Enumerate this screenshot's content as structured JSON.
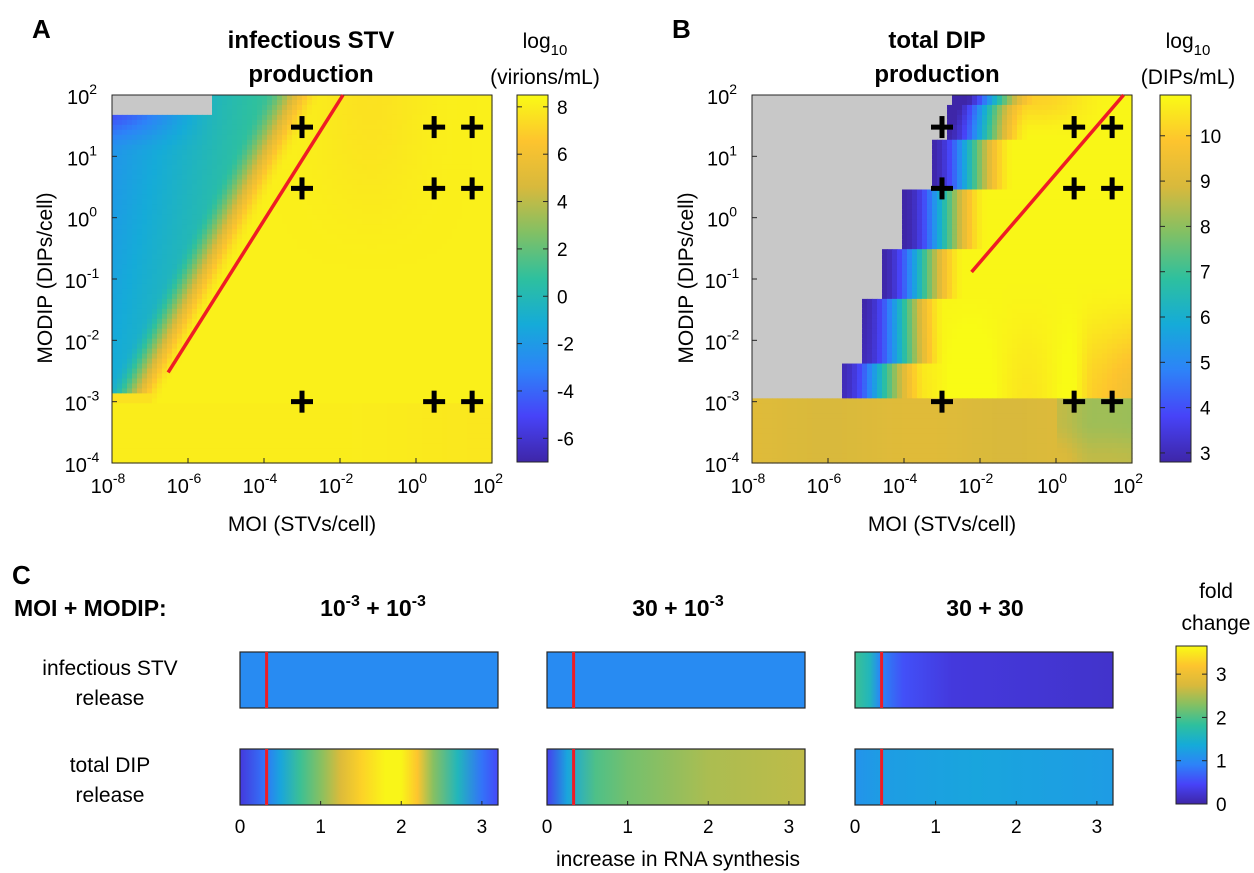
{
  "colormap": [
    "#3e26a8",
    "#4743f8",
    "#2d83f8",
    "#15abd8",
    "#2ec09e",
    "#82c064",
    "#d8b93c",
    "#fdc42e",
    "#f9fb15"
  ],
  "colors": {
    "nan": "#c8c8c8",
    "line": "#ee1c25",
    "cross": "#000000"
  },
  "chart_data": [
    {
      "type": "heatmap",
      "panel_label": "A",
      "title_lines": [
        "infectious STV",
        "production"
      ],
      "xlabel": "MOI (STVs/cell)",
      "ylabel": "MODIP (DIPs/cell)",
      "xscale": "log",
      "yscale": "log",
      "xlim": [
        1e-08,
        100
      ],
      "ylim": [
        0.0001,
        100
      ],
      "x_ticks": [
        {
          "base": "10",
          "exp": "-8"
        },
        {
          "base": "10",
          "exp": "-6"
        },
        {
          "base": "10",
          "exp": "-4"
        },
        {
          "base": "10",
          "exp": "-2"
        },
        {
          "base": "10",
          "exp": "0"
        },
        {
          "base": "10",
          "exp": "2"
        }
      ],
      "y_ticks": [
        {
          "base": "10",
          "exp": "-4"
        },
        {
          "base": "10",
          "exp": "-3"
        },
        {
          "base": "10",
          "exp": "-2"
        },
        {
          "base": "10",
          "exp": "-1"
        },
        {
          "base": "10",
          "exp": "0"
        },
        {
          "base": "10",
          "exp": "1"
        },
        {
          "base": "10",
          "exp": "2"
        }
      ],
      "colorbar": {
        "title_lines": [
          "log10",
          "(virions/mL)"
        ],
        "title_base": "log",
        "title_sub": "10",
        "title_line2": "(virions/mL)",
        "range": [
          -7,
          8.5
        ],
        "ticks": [
          "8",
          "6",
          "4",
          "2",
          "0",
          "-2",
          "-4",
          "-6"
        ]
      },
      "markers": [
        [
          0.001,
          30
        ],
        [
          3,
          30
        ],
        [
          30,
          30
        ],
        [
          0.001,
          3
        ],
        [
          3,
          3
        ],
        [
          30,
          3
        ],
        [
          0.001,
          0.001
        ],
        [
          3,
          0.001
        ],
        [
          30,
          0.001
        ]
      ],
      "red_line": [
        [
          3e-07,
          0.003
        ],
        [
          0.012,
          100
        ]
      ],
      "nan_region": "MODIP above ~50 at very low MOI"
    },
    {
      "type": "heatmap",
      "panel_label": "B",
      "title_lines": [
        "total DIP",
        "production"
      ],
      "xlabel": "MOI (STVs/cell)",
      "ylabel": "MODIP (DIPs/cell)",
      "xscale": "log",
      "yscale": "log",
      "xlim": [
        1e-08,
        100
      ],
      "ylim": [
        0.0001,
        100
      ],
      "x_ticks": [
        {
          "base": "10",
          "exp": "-8"
        },
        {
          "base": "10",
          "exp": "-6"
        },
        {
          "base": "10",
          "exp": "-4"
        },
        {
          "base": "10",
          "exp": "-2"
        },
        {
          "base": "10",
          "exp": "0"
        },
        {
          "base": "10",
          "exp": "2"
        }
      ],
      "y_ticks": [
        {
          "base": "10",
          "exp": "-4"
        },
        {
          "base": "10",
          "exp": "-3"
        },
        {
          "base": "10",
          "exp": "-2"
        },
        {
          "base": "10",
          "exp": "-1"
        },
        {
          "base": "10",
          "exp": "0"
        },
        {
          "base": "10",
          "exp": "1"
        },
        {
          "base": "10",
          "exp": "2"
        }
      ],
      "colorbar": {
        "title_lines": [
          "log10",
          "(DIPs/mL)"
        ],
        "title_base": "log",
        "title_sub": "10",
        "title_line2": "(DIPs/mL)",
        "range": [
          2.8,
          10.9
        ],
        "ticks": [
          "10",
          "9",
          "8",
          "7",
          "6",
          "5",
          "4",
          "3"
        ]
      },
      "markers": [
        [
          0.001,
          30
        ],
        [
          3,
          30
        ],
        [
          30,
          30
        ],
        [
          0.001,
          3
        ],
        [
          3,
          3
        ],
        [
          30,
          3
        ],
        [
          0.001,
          0.001
        ],
        [
          3,
          0.001
        ],
        [
          30,
          0.001
        ]
      ],
      "red_line": [
        [
          0.006,
          0.13
        ],
        [
          60,
          100
        ]
      ],
      "nan_region": "upper-left staircase region"
    },
    {
      "type": "heatmap",
      "panel_label": "C",
      "row_header": "MOI + MODIP:",
      "column_headers": [
        {
          "base": "10",
          "exp": "-3",
          "mid": " + 10",
          "exp2": "-3"
        },
        {
          "base": "30 + 10",
          "exp": "-3",
          "mid": "",
          "exp2": ""
        },
        {
          "base": "30 + 30",
          "exp": "",
          "mid": "",
          "exp2": ""
        }
      ],
      "row_labels": [
        [
          "infectious STV",
          "release"
        ],
        [
          "total DIP",
          "release"
        ]
      ],
      "xlabel": "increase in RNA synthesis",
      "xlim": [
        0,
        3.2
      ],
      "x_ticks": [
        "0",
        "1",
        "2",
        "3"
      ],
      "marker_x": 0.33,
      "colorbar": {
        "title_lines": [
          "fold",
          "change"
        ],
        "range": [
          0,
          3.65
        ],
        "ticks": [
          "3",
          "2",
          "1",
          "0"
        ]
      },
      "bars": [
        [
          {
            "x": 0,
            "v": 1.0
          },
          {
            "x": 3.2,
            "v": 1.0
          }
        ],
        [
          {
            "x": 0,
            "v": 1.0
          },
          {
            "x": 3.2,
            "v": 1.0
          }
        ],
        [
          {
            "x": 0,
            "v": 1.9
          },
          {
            "x": 0.18,
            "v": 1.6
          },
          {
            "x": 0.3,
            "v": 1.0
          },
          {
            "x": 0.6,
            "v": 0.55
          },
          {
            "x": 1.2,
            "v": 0.3
          },
          {
            "x": 3.2,
            "v": 0.2
          }
        ],
        [
          {
            "x": 0,
            "v": 0.3
          },
          {
            "x": 0.3,
            "v": 0.8
          },
          {
            "x": 0.5,
            "v": 1.3
          },
          {
            "x": 0.75,
            "v": 1.9
          },
          {
            "x": 1.0,
            "v": 2.3
          },
          {
            "x": 1.25,
            "v": 2.8
          },
          {
            "x": 1.5,
            "v": 3.3
          },
          {
            "x": 1.8,
            "v": 3.6
          },
          {
            "x": 2.0,
            "v": 3.6
          },
          {
            "x": 2.2,
            "v": 3.2
          },
          {
            "x": 2.4,
            "v": 2.3
          },
          {
            "x": 2.7,
            "v": 1.6
          },
          {
            "x": 3.0,
            "v": 0.8
          },
          {
            "x": 3.2,
            "v": 0.5
          }
        ],
        [
          {
            "x": 0,
            "v": 0.4
          },
          {
            "x": 0.25,
            "v": 1.3
          },
          {
            "x": 0.6,
            "v": 2.0
          },
          {
            "x": 1.0,
            "v": 2.2
          },
          {
            "x": 2.0,
            "v": 2.5
          },
          {
            "x": 3.2,
            "v": 2.6
          }
        ],
        [
          {
            "x": 0,
            "v": 1.1
          },
          {
            "x": 0.3,
            "v": 1.2
          },
          {
            "x": 1.5,
            "v": 1.3
          },
          {
            "x": 3.2,
            "v": 1.2
          }
        ]
      ]
    }
  ]
}
